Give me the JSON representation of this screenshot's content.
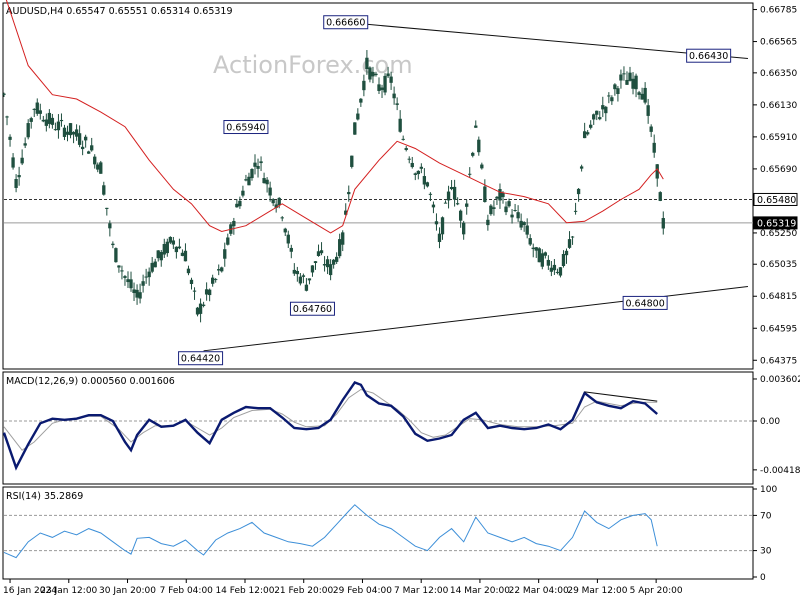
{
  "header": {
    "main": "AUDUSD,H4  0.65547 0.65551 0.65314 0.65319",
    "macd": "MACD(12,26,9) 0.000560 0.001606",
    "rsi": "RSI(14) 35.2869"
  },
  "watermark": "ActionForex.com",
  "colors": {
    "candles": "#1f4f3f",
    "ma": "#d42020",
    "macd_line": "#0a1a70",
    "signal_line": "#a0a0a0",
    "rsi_line": "#3d8fd8",
    "trendline": "#111111",
    "tag_border": "#1a237e"
  },
  "chart_data": [
    {
      "type": "candlestick",
      "title": "AUDUSD,H4",
      "ohlc_last": {
        "open": 0.65547,
        "high": 0.65551,
        "low": 0.65314,
        "close": 0.65319
      },
      "ylim": [
        0.64315,
        0.6683
      ],
      "yticks": [
        "0.66785",
        "0.66565",
        "0.66350",
        "0.66130",
        "0.65910",
        "0.65690",
        "0.65480",
        "0.65250",
        "0.65035",
        "0.64815",
        "0.64595",
        "0.64375"
      ],
      "xticks": [
        "16 Jan 2024",
        "23 Jan 12:00",
        "30 Jan 20:00",
        "7 Feb 04:00",
        "14 Feb 12:00",
        "21 Feb 20:00",
        "29 Feb 04:00",
        "7 Mar 12:00",
        "14 Mar 20:00",
        "22 Mar 04:00",
        "29 Mar 12:00",
        "5 Apr 20:00"
      ],
      "price_labels": [
        {
          "text": "0.66660",
          "value": 0.6666,
          "bar": 56.5
        },
        {
          "text": "0.66430",
          "value": 0.6643,
          "bar": 116.5
        },
        {
          "text": "0.65940",
          "value": 0.6594,
          "bar": 40
        },
        {
          "text": "0.64760",
          "value": 0.6476,
          "bar": 51
        },
        {
          "text": "0.64800",
          "value": 0.648,
          "bar": 106
        },
        {
          "text": "0.64420",
          "value": 0.6442,
          "bar": 32.5
        }
      ],
      "right_tags": [
        {
          "text": "0.65480",
          "value": 0.6548
        },
        {
          "text": "0.65319",
          "value": 0.65319
        }
      ],
      "trendlines": [
        {
          "from": {
            "bar": 54,
            "value": 0.66706
          },
          "to": {
            "bar": 123,
            "value": 0.66449
          }
        },
        {
          "from": {
            "bar": 33,
            "value": 0.6444
          },
          "to": {
            "bar": 123,
            "value": 0.64882
          }
        }
      ],
      "dashed_level": 0.6548,
      "close_level": 0.65319,
      "moving_average": [
        [
          0,
          0.669
        ],
        [
          4,
          0.664
        ],
        [
          8,
          0.662
        ],
        [
          12,
          0.6617
        ],
        [
          16,
          0.6608
        ],
        [
          20,
          0.6598
        ],
        [
          24,
          0.6575
        ],
        [
          28,
          0.6555
        ],
        [
          31,
          0.6545
        ],
        [
          34,
          0.653
        ],
        [
          36,
          0.6526
        ],
        [
          40,
          0.653
        ],
        [
          44,
          0.654
        ],
        [
          46,
          0.6545
        ],
        [
          50,
          0.6535
        ],
        [
          54,
          0.6525
        ],
        [
          56,
          0.653
        ],
        [
          58,
          0.6555
        ],
        [
          62,
          0.6575
        ],
        [
          65,
          0.6588
        ],
        [
          68,
          0.6583
        ],
        [
          72,
          0.6573
        ],
        [
          76,
          0.6565
        ],
        [
          80,
          0.6557
        ],
        [
          82,
          0.6553
        ],
        [
          86,
          0.655
        ],
        [
          90,
          0.6545
        ],
        [
          93,
          0.6532
        ],
        [
          96,
          0.6533
        ],
        [
          99,
          0.654
        ],
        [
          102,
          0.6548
        ],
        [
          105,
          0.6555
        ],
        [
          107,
          0.6565
        ],
        [
          108,
          0.6569
        ],
        [
          109,
          0.6562
        ]
      ],
      "candle_path": [
        [
          0,
          0.662
        ],
        [
          2,
          0.656
        ],
        [
          5,
          0.6612
        ],
        [
          8,
          0.66
        ],
        [
          11,
          0.6595
        ],
        [
          14,
          0.6585
        ],
        [
          16,
          0.657
        ],
        [
          18,
          0.6515
        ],
        [
          20,
          0.6495
        ],
        [
          22,
          0.648
        ],
        [
          24,
          0.65
        ],
        [
          26,
          0.651
        ],
        [
          28,
          0.652
        ],
        [
          30,
          0.651
        ],
        [
          32,
          0.647
        ],
        [
          34,
          0.6485
        ],
        [
          36,
          0.65
        ],
        [
          38,
          0.6535
        ],
        [
          40,
          0.656
        ],
        [
          42,
          0.6575
        ],
        [
          44,
          0.6555
        ],
        [
          46,
          0.654
        ],
        [
          48,
          0.65
        ],
        [
          50,
          0.649
        ],
        [
          52,
          0.651
        ],
        [
          54,
          0.65
        ],
        [
          56,
          0.652
        ],
        [
          58,
          0.6595
        ],
        [
          60,
          0.664
        ],
        [
          62,
          0.6625
        ],
        [
          64,
          0.663
        ],
        [
          66,
          0.659
        ],
        [
          68,
          0.657
        ],
        [
          70,
          0.656
        ],
        [
          72,
          0.652
        ],
        [
          74,
          0.656
        ],
        [
          76,
          0.653
        ],
        [
          78,
          0.66
        ],
        [
          80,
          0.6535
        ],
        [
          82,
          0.655
        ],
        [
          84,
          0.654
        ],
        [
          86,
          0.653
        ],
        [
          88,
          0.651
        ],
        [
          90,
          0.6505
        ],
        [
          92,
          0.65
        ],
        [
          94,
          0.652
        ],
        [
          96,
          0.659
        ],
        [
          98,
          0.6605
        ],
        [
          100,
          0.6615
        ],
        [
          102,
          0.663
        ],
        [
          104,
          0.663
        ],
        [
          106,
          0.662
        ],
        [
          108,
          0.6568
        ],
        [
          109,
          0.6532
        ]
      ],
      "x_extent": 124,
      "series": [
        {
          "name": "",
          "type": "candles"
        },
        {
          "name": "",
          "type": "moving-average"
        }
      ]
    },
    {
      "type": "line",
      "title": "MACD(12,26,9)",
      "ylim": [
        -0.0054,
        0.0042
      ],
      "yticks": [
        "0.003602",
        "0.00",
        "-0.004188"
      ],
      "macd": [
        [
          0,
          -0.001
        ],
        [
          2,
          -0.004
        ],
        [
          4,
          -0.002
        ],
        [
          6,
          -0.0002
        ],
        [
          8,
          0.0002
        ],
        [
          10,
          0.0001
        ],
        [
          12,
          0.0002
        ],
        [
          14,
          0.0005
        ],
        [
          16,
          0.0005
        ],
        [
          18,
          0.0
        ],
        [
          20,
          -0.0018
        ],
        [
          21,
          -0.0025
        ],
        [
          22,
          -0.0012
        ],
        [
          24,
          0.0001
        ],
        [
          26,
          -0.0005
        ],
        [
          28,
          -0.0004
        ],
        [
          30,
          0.0001
        ],
        [
          32,
          -0.001
        ],
        [
          34,
          -0.0019
        ],
        [
          36,
          0.0001
        ],
        [
          38,
          0.0007
        ],
        [
          40,
          0.0012
        ],
        [
          42,
          0.0011
        ],
        [
          44,
          0.0011
        ],
        [
          46,
          0.0003
        ],
        [
          48,
          -0.0006
        ],
        [
          50,
          -0.0007
        ],
        [
          52,
          -0.0006
        ],
        [
          54,
          0.0001
        ],
        [
          56,
          0.0018
        ],
        [
          58,
          0.0033
        ],
        [
          59,
          0.0031
        ],
        [
          60,
          0.0022
        ],
        [
          62,
          0.0015
        ],
        [
          64,
          0.0013
        ],
        [
          66,
          0.0004
        ],
        [
          68,
          -0.0011
        ],
        [
          70,
          -0.0017
        ],
        [
          72,
          -0.0015
        ],
        [
          74,
          -0.0012
        ],
        [
          76,
          0.0001
        ],
        [
          78,
          0.0007
        ],
        [
          80,
          -0.0006
        ],
        [
          82,
          -0.0004
        ],
        [
          84,
          -0.0006
        ],
        [
          86,
          -0.0007
        ],
        [
          88,
          -0.0006
        ],
        [
          90,
          -0.0003
        ],
        [
          92,
          -0.0007
        ],
        [
          94,
          0.0001
        ],
        [
          96,
          0.0024
        ],
        [
          98,
          0.0016
        ],
        [
          100,
          0.0013
        ],
        [
          102,
          0.0011
        ],
        [
          104,
          0.0017
        ],
        [
          106,
          0.0015
        ],
        [
          108,
          0.0006
        ]
      ],
      "signal": [
        [
          0,
          -0.0005
        ],
        [
          3,
          -0.0025
        ],
        [
          5,
          -0.0018
        ],
        [
          8,
          -0.0002
        ],
        [
          10,
          0.0001
        ],
        [
          14,
          0.0004
        ],
        [
          16,
          0.0004
        ],
        [
          19,
          -0.0007
        ],
        [
          21,
          -0.0018
        ],
        [
          23,
          -0.001
        ],
        [
          25,
          -0.0004
        ],
        [
          28,
          -0.0004
        ],
        [
          30,
          0.0
        ],
        [
          32,
          -0.0006
        ],
        [
          34,
          -0.0012
        ],
        [
          36,
          -0.0006
        ],
        [
          38,
          0.0003
        ],
        [
          41,
          0.0009
        ],
        [
          44,
          0.001
        ],
        [
          46,
          0.0006
        ],
        [
          48,
          -0.0001
        ],
        [
          50,
          -0.0005
        ],
        [
          53,
          -0.0004
        ],
        [
          55,
          0.0006
        ],
        [
          57,
          0.002
        ],
        [
          59,
          0.0027
        ],
        [
          61,
          0.0024
        ],
        [
          63,
          0.0017
        ],
        [
          65,
          0.001
        ],
        [
          67,
          0.0001
        ],
        [
          69,
          -0.001
        ],
        [
          71,
          -0.0014
        ],
        [
          73,
          -0.0012
        ],
        [
          75,
          -0.0005
        ],
        [
          77,
          0.0002
        ],
        [
          79,
          0.0001
        ],
        [
          82,
          -0.0003
        ],
        [
          85,
          -0.0005
        ],
        [
          88,
          -0.0005
        ],
        [
          91,
          -0.0004
        ],
        [
          94,
          -0.0002
        ],
        [
          96,
          0.0012
        ],
        [
          98,
          0.0017
        ],
        [
          100,
          0.0015
        ],
        [
          102,
          0.0013
        ],
        [
          104,
          0.0015
        ],
        [
          106,
          0.0016
        ],
        [
          108,
          0.0016
        ]
      ],
      "trendline": {
        "from": {
          "bar": 96,
          "value": 0.0025
        },
        "to": {
          "bar": 108,
          "value": 0.0017
        }
      }
    },
    {
      "type": "line",
      "title": "RSI(14)",
      "ylim": [
        0,
        100
      ],
      "yticks": [
        "100",
        "70",
        "30",
        "0"
      ],
      "levels": [
        70,
        30
      ],
      "rsi": [
        [
          0,
          28
        ],
        [
          2,
          22
        ],
        [
          4,
          40
        ],
        [
          6,
          50
        ],
        [
          8,
          45
        ],
        [
          10,
          52
        ],
        [
          12,
          48
        ],
        [
          14,
          55
        ],
        [
          16,
          50
        ],
        [
          18,
          40
        ],
        [
          20,
          30
        ],
        [
          21,
          26
        ],
        [
          22,
          44
        ],
        [
          24,
          45
        ],
        [
          26,
          38
        ],
        [
          28,
          35
        ],
        [
          30,
          42
        ],
        [
          32,
          30
        ],
        [
          33,
          25
        ],
        [
          35,
          42
        ],
        [
          37,
          50
        ],
        [
          39,
          55
        ],
        [
          41,
          62
        ],
        [
          43,
          50
        ],
        [
          45,
          45
        ],
        [
          47,
          40
        ],
        [
          49,
          38
        ],
        [
          51,
          35
        ],
        [
          53,
          45
        ],
        [
          55,
          60
        ],
        [
          57,
          75
        ],
        [
          58,
          82
        ],
        [
          60,
          70
        ],
        [
          62,
          60
        ],
        [
          64,
          55
        ],
        [
          66,
          45
        ],
        [
          68,
          35
        ],
        [
          70,
          30
        ],
        [
          72,
          45
        ],
        [
          74,
          55
        ],
        [
          76,
          40
        ],
        [
          78,
          68
        ],
        [
          80,
          50
        ],
        [
          82,
          45
        ],
        [
          84,
          40
        ],
        [
          86,
          45
        ],
        [
          88,
          38
        ],
        [
          90,
          35
        ],
        [
          92,
          30
        ],
        [
          94,
          45
        ],
        [
          96,
          75
        ],
        [
          98,
          62
        ],
        [
          100,
          55
        ],
        [
          102,
          65
        ],
        [
          104,
          70
        ],
        [
          106,
          72
        ],
        [
          107,
          65
        ],
        [
          108,
          35
        ]
      ]
    }
  ]
}
